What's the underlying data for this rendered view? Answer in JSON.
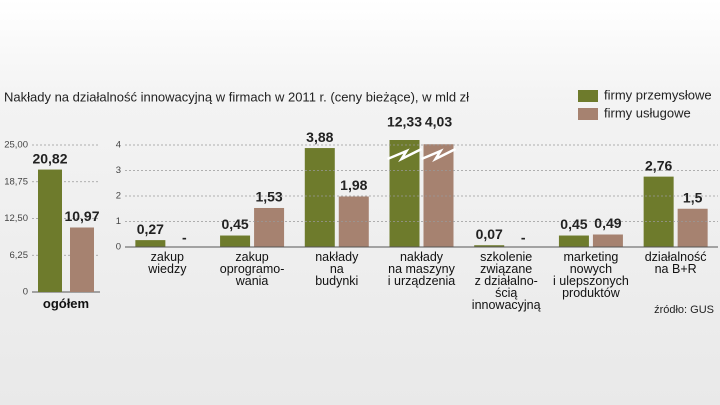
{
  "title": "Nakłady na działalność innowacyjną w firmach w 2011 r. (ceny bieżące), w mld zł",
  "source": "źródło: GUS",
  "chart_data": [
    {
      "type": "bar",
      "categories": [
        "ogółem"
      ],
      "series": [
        {
          "name": "firmy przemysłowe",
          "color": "#6e7b2c",
          "values": [
            20.82
          ],
          "value_labels": [
            "20,82"
          ]
        },
        {
          "name": "firmy usługowe",
          "color": "#a68270",
          "values": [
            10.97
          ],
          "value_labels": [
            "10,97"
          ]
        }
      ],
      "ylim": [
        0,
        25
      ],
      "yticks": [
        {
          "value": 0,
          "label": "0"
        },
        {
          "value": 6.25,
          "label": "6,25"
        },
        {
          "value": 12.5,
          "label": "12,50"
        },
        {
          "value": 18.75,
          "label": "18,75"
        },
        {
          "value": 25,
          "label": "25,00"
        }
      ],
      "grid": true
    },
    {
      "type": "bar",
      "categories": [
        "zakup\nwiedzy",
        "zakup\noprogramo-\nwania",
        "nakłady\nna\nbudynki",
        "nakłady\nna maszyny\ni urządzenia",
        "szkolenie\nzwiązane\nz działalno-\nścią\ninnowacyjną",
        "marketing\nnowych\ni ulepszonych\nproduktów",
        "działalność\nna B+R"
      ],
      "series": [
        {
          "name": "firmy przemysłowe",
          "color": "#6e7b2c",
          "values": [
            0.27,
            0.45,
            3.88,
            12.33,
            0.07,
            0.45,
            2.76
          ],
          "value_labels": [
            "0,27",
            "0,45",
            "3,88",
            "12,33",
            "0,07",
            "0,45",
            "2,76"
          ]
        },
        {
          "name": "firmy usługowe",
          "color": "#a68270",
          "values": [
            null,
            1.53,
            1.98,
            4.03,
            null,
            0.49,
            1.5
          ],
          "value_labels": [
            "-",
            "1,53",
            "1,98",
            "4,03",
            "-",
            "0,49",
            "1,5"
          ]
        }
      ],
      "ylim": [
        0,
        4
      ],
      "yticks": [
        0,
        1,
        2,
        3,
        4
      ],
      "grid": true,
      "legend": "top-right"
    }
  ]
}
